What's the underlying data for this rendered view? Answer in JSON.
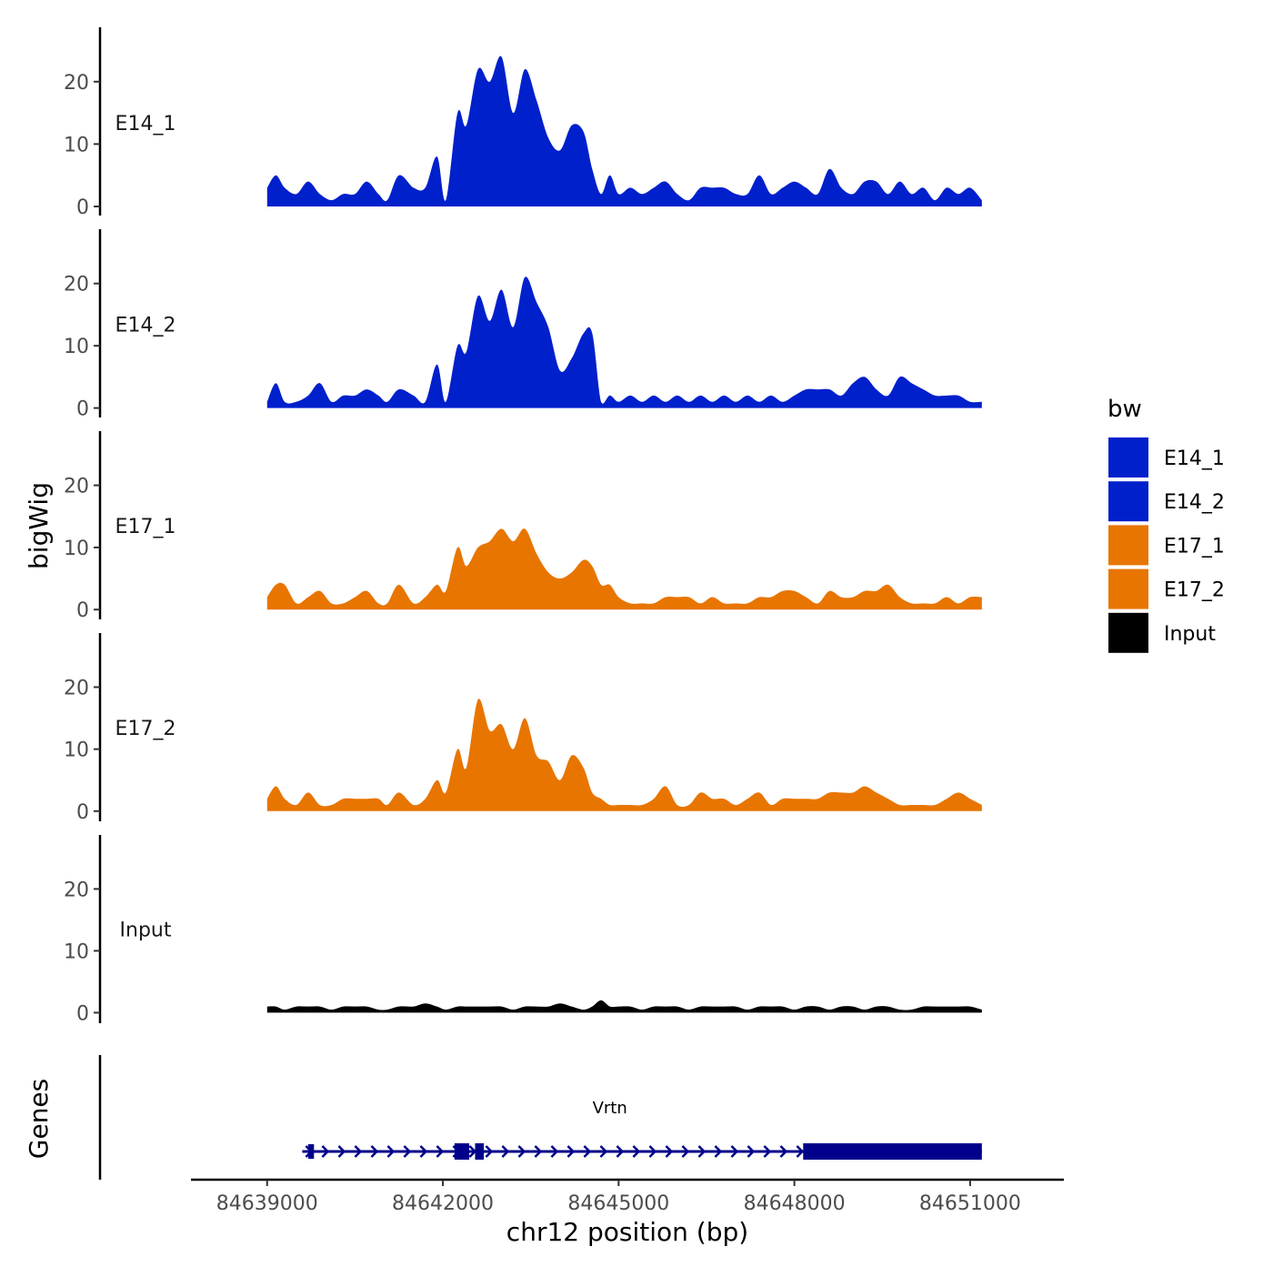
{
  "chart_data": {
    "type": "area",
    "ylabel": "bigWig",
    "genes_label": "Genes",
    "xlabel": "chr12 position (bp)",
    "xlim": [
      84637700,
      84652600
    ],
    "ylim": [
      0,
      27
    ],
    "x_ticks": [
      84639000,
      84642000,
      84645000,
      84648000,
      84651000
    ],
    "y_ticks": [
      0,
      10,
      20
    ],
    "data_range": [
      84639000,
      84651200
    ],
    "legend": {
      "title": "bw",
      "position": "right",
      "entries": [
        {
          "label": "E14_1",
          "color": "#0020CC"
        },
        {
          "label": "E14_2",
          "color": "#0020CC"
        },
        {
          "label": "E17_1",
          "color": "#E87500"
        },
        {
          "label": "E17_2",
          "color": "#E87500"
        },
        {
          "label": "Input",
          "color": "#000000"
        }
      ]
    },
    "series": [
      {
        "name": "E14_1",
        "color": "#0020CC",
        "x": [
          84639000,
          84639150,
          84639300,
          84639500,
          84639700,
          84639900,
          84640100,
          84640300,
          84640500,
          84640700,
          84640900,
          84641050,
          84641250,
          84641500,
          84641700,
          84641900,
          84642050,
          84642250,
          84642400,
          84642600,
          84642800,
          84643000,
          84643200,
          84643400,
          84643600,
          84643800,
          84644000,
          84644200,
          84644400,
          84644550,
          84644700,
          84644850,
          84645000,
          84645200,
          84645400,
          84645600,
          84645800,
          84646000,
          84646200,
          84646400,
          84646600,
          84646800,
          84647000,
          84647200,
          84647400,
          84647600,
          84647800,
          84648000,
          84648200,
          84648400,
          84648600,
          84648800,
          84649000,
          84649200,
          84649400,
          84649600,
          84649800,
          84650000,
          84650200,
          84650400,
          84650600,
          84650800,
          84651000,
          84651200
        ],
        "values": [
          3,
          5,
          3,
          2,
          4,
          2,
          1,
          2,
          2,
          4,
          2,
          1,
          5,
          3,
          3,
          8,
          1,
          15,
          13,
          22,
          20,
          24,
          15,
          22,
          17,
          11,
          9,
          13,
          12,
          6,
          2,
          5,
          2,
          3,
          2,
          3,
          4,
          2,
          1,
          3,
          3,
          3,
          2,
          2,
          5,
          2,
          3,
          4,
          3,
          2,
          6,
          3,
          2,
          4,
          4,
          2,
          4,
          2,
          3,
          1,
          3,
          2,
          3,
          1
        ]
      },
      {
        "name": "E14_2",
        "color": "#0020CC",
        "x": [
          84639000,
          84639150,
          84639300,
          84639500,
          84639700,
          84639900,
          84640100,
          84640300,
          84640500,
          84640700,
          84640900,
          84641050,
          84641250,
          84641500,
          84641700,
          84641900,
          84642050,
          84642250,
          84642400,
          84642600,
          84642800,
          84643000,
          84643200,
          84643400,
          84643600,
          84643800,
          84644000,
          84644200,
          84644400,
          84644550,
          84644700,
          84644850,
          84645000,
          84645200,
          84645400,
          84645600,
          84645800,
          84646000,
          84646200,
          84646400,
          84646600,
          84646800,
          84647000,
          84647200,
          84647400,
          84647600,
          84647800,
          84648000,
          84648200,
          84648400,
          84648600,
          84648800,
          84649000,
          84649200,
          84649400,
          84649600,
          84649800,
          84650000,
          84650200,
          84650400,
          84650600,
          84650800,
          84651000,
          84651200
        ],
        "values": [
          1,
          4,
          1,
          1,
          2,
          4,
          1,
          2,
          2,
          3,
          2,
          1,
          3,
          2,
          1,
          7,
          1,
          10,
          9,
          18,
          14,
          19,
          13,
          21,
          17,
          13,
          6,
          8,
          12,
          12,
          1,
          2,
          1,
          2,
          1,
          2,
          1,
          2,
          1,
          2,
          1,
          2,
          1,
          2,
          1,
          2,
          1,
          2,
          3,
          3,
          3,
          2,
          4,
          5,
          3,
          2,
          5,
          4,
          3,
          2,
          2,
          2,
          1,
          1
        ]
      },
      {
        "name": "E17_1",
        "color": "#E87500",
        "x": [
          84639000,
          84639150,
          84639300,
          84639500,
          84639700,
          84639900,
          84640100,
          84640300,
          84640500,
          84640700,
          84640900,
          84641050,
          84641250,
          84641500,
          84641700,
          84641900,
          84642050,
          84642250,
          84642400,
          84642600,
          84642800,
          84643000,
          84643200,
          84643400,
          84643600,
          84643800,
          84644000,
          84644200,
          84644400,
          84644550,
          84644700,
          84644850,
          84645000,
          84645200,
          84645400,
          84645600,
          84645800,
          84646000,
          84646200,
          84646400,
          84646600,
          84646800,
          84647000,
          84647200,
          84647400,
          84647600,
          84647800,
          84648000,
          84648200,
          84648400,
          84648600,
          84648800,
          84649000,
          84649200,
          84649400,
          84649600,
          84649800,
          84650000,
          84650200,
          84650400,
          84650600,
          84650800,
          84651000,
          84651200
        ],
        "values": [
          2,
          4,
          4,
          1,
          2,
          3,
          1,
          1,
          2,
          3,
          1,
          1,
          4,
          1,
          2,
          4,
          3,
          10,
          7,
          10,
          11,
          13,
          11,
          13,
          9,
          6,
          5,
          6,
          8,
          7,
          4,
          4,
          2,
          1,
          1,
          1,
          2,
          2,
          2,
          1,
          2,
          1,
          1,
          1,
          2,
          2,
          3,
          3,
          2,
          1,
          3,
          2,
          2,
          3,
          3,
          4,
          2,
          1,
          1,
          1,
          2,
          1,
          2,
          2
        ]
      },
      {
        "name": "E17_2",
        "color": "#E87500",
        "x": [
          84639000,
          84639150,
          84639300,
          84639500,
          84639700,
          84639900,
          84640100,
          84640300,
          84640500,
          84640700,
          84640900,
          84641050,
          84641250,
          84641500,
          84641700,
          84641900,
          84642050,
          84642250,
          84642400,
          84642600,
          84642800,
          84643000,
          84643200,
          84643400,
          84643600,
          84643800,
          84644000,
          84644200,
          84644400,
          84644550,
          84644700,
          84644850,
          84645000,
          84645200,
          84645400,
          84645600,
          84645800,
          84646000,
          84646200,
          84646400,
          84646600,
          84646800,
          84647000,
          84647200,
          84647400,
          84647600,
          84647800,
          84648000,
          84648200,
          84648400,
          84648600,
          84648800,
          84649000,
          84649200,
          84649400,
          84649600,
          84649800,
          84650000,
          84650200,
          84650400,
          84650600,
          84650800,
          84651000,
          84651200
        ],
        "values": [
          2,
          4,
          2,
          1,
          3,
          1,
          1,
          2,
          2,
          2,
          2,
          1,
          3,
          1,
          2,
          5,
          3,
          10,
          7,
          18,
          13,
          14,
          10,
          15,
          9,
          8,
          5,
          9,
          7,
          3,
          2,
          1,
          1,
          1,
          1,
          2,
          4,
          1,
          1,
          3,
          2,
          2,
          1,
          2,
          3,
          1,
          2,
          2,
          2,
          2,
          3,
          3,
          3,
          4,
          3,
          2,
          1,
          1,
          1,
          1,
          2,
          3,
          2,
          1
        ]
      },
      {
        "name": "Input",
        "color": "#000000",
        "x": [
          84639000,
          84639150,
          84639300,
          84639500,
          84639700,
          84639900,
          84640100,
          84640300,
          84640500,
          84640700,
          84640900,
          84641050,
          84641250,
          84641500,
          84641700,
          84641900,
          84642050,
          84642250,
          84642400,
          84642600,
          84642800,
          84643000,
          84643200,
          84643400,
          84643600,
          84643800,
          84644000,
          84644200,
          84644400,
          84644550,
          84644700,
          84644850,
          84645000,
          84645200,
          84645400,
          84645600,
          84645800,
          84646000,
          84646200,
          84646400,
          84646600,
          84646800,
          84647000,
          84647200,
          84647400,
          84647600,
          84647800,
          84648000,
          84648200,
          84648400,
          84648600,
          84648800,
          84649000,
          84649200,
          84649400,
          84649600,
          84649800,
          84650000,
          84650200,
          84650400,
          84650600,
          84650800,
          84651000,
          84651200
        ],
        "values": [
          1,
          1,
          0.5,
          1,
          1,
          1,
          0.5,
          1,
          1,
          1,
          0.5,
          0.5,
          1,
          1,
          1.5,
          1,
          0.5,
          1,
          1,
          1,
          1,
          1,
          0.5,
          1,
          1,
          1,
          1.5,
          1,
          0.5,
          1,
          2,
          1,
          1,
          1,
          0.5,
          1,
          1,
          1,
          0.5,
          1,
          1,
          1,
          1,
          0.5,
          1,
          1,
          1,
          0.5,
          1,
          1,
          0.5,
          1,
          1,
          0.5,
          1,
          1,
          0.5,
          0.5,
          1,
          1,
          1,
          1,
          1,
          0.5
        ]
      }
    ],
    "gene": {
      "name": "Vrtn",
      "start": 84639600,
      "end": 84651200,
      "exons": [
        [
          84639700,
          84639800
        ],
        [
          84642200,
          84642450
        ],
        [
          84642550,
          84642700
        ],
        [
          84648150,
          84651200
        ]
      ]
    }
  }
}
